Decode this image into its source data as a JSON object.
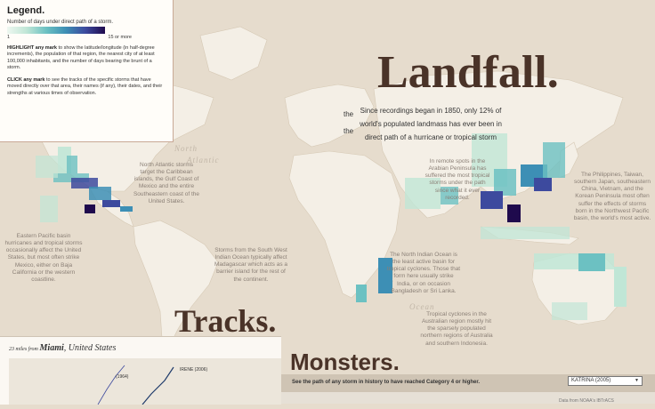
{
  "legend": {
    "title": "Legend.",
    "scale_title": "Number of days under direct path of a storm.",
    "scale_min": "1",
    "scale_max": "15 or more",
    "highlight_lead": "HIGHLIGHT any mark",
    "highlight_text": " to show the latitude/longitude (in half-degree increments), the population of that region, the nearest city of at least 100,000 inhabitants, and the number of days bearing the brunt of a storm.",
    "click_lead": "CLICK any mark",
    "click_text": " to see the tracks of the specific storms that have moved directly over that area, their names (if any), their dates, and their strengths at various times of observation.",
    "colors": [
      "#eef7f0",
      "#c0e6d6",
      "#6cc1c2",
      "#3d8fb5",
      "#3d4a9e",
      "#1f0a4d"
    ]
  },
  "landfall": {
    "title": "Landfall.",
    "intro_line1": "Since recordings began in 1850, only 12% of",
    "intro_word_a": "the",
    "intro_line2": "world's populated landmass has ever been in",
    "intro_word_b": "the",
    "intro_line3": "direct path of a hurricane or tropical storm"
  },
  "water_labels": {
    "north_atlantic_1": "North",
    "north_atlantic_2": "Atlantic",
    "indian_ocean": "Ocean"
  },
  "annotations": {
    "north_atlantic": "North Atlantic storms target the Caribbean islands, the Gulf Coast of Mexico and the entire Southeastern coast of the United States.",
    "eastern_pacific": "Eastern Pacific basin hurricanes and tropical storms occasionally affect the United States, but most often strike Mexico, either on Baja California or the western coastline.",
    "south_west_indian": "Storms from the South West Indian Ocean typically affect Madagascar which acts as a barrier island for the rest of the continent.",
    "north_indian": "The North Indian Ocean is the least active basin for tropical cyclones. Those that form here usually strike India, or on occasion Bangladesh or Sri Lanka.",
    "australian": "Tropical cyclones in the Australian region mostly hit the sparsely populated northern regions of Australia and southern Indonesia.",
    "northwest_pacific": "The Philippines, Taiwan, southern Japan, southeastern China, Vietnam, and the Korean Peninsula most often suffer the effects of storms born in the Northwest Pacific basin, the world's most active.",
    "remote_spots": "In remote spots in the Arabian Peninsula has suffered the most tropical storms under the path since what it ever recorded."
  },
  "tracks": {
    "title": "Tracks.",
    "miles": "23 miles from",
    "city": "Miami",
    "country": ", United States",
    "storm_irene": "IRENE (2006)",
    "storm_other": "(1964)"
  },
  "monsters": {
    "title": "Monsters.",
    "caption": "See the path of any storm in history to have reached Category 4 or higher.",
    "selected_storm": "KATRINA (2005)",
    "footer": "Data from NOAA's IBTrACS"
  }
}
